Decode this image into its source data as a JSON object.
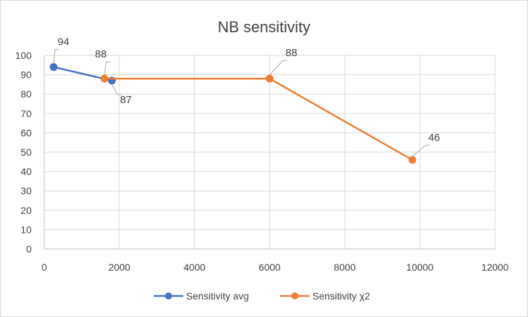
{
  "chart_data": {
    "type": "line",
    "title": "NB sensitivity",
    "xlabel": "",
    "ylabel": "",
    "xlim": [
      0,
      12000
    ],
    "ylim": [
      0,
      100
    ],
    "x_ticks": [
      0,
      2000,
      4000,
      6000,
      8000,
      10000,
      12000
    ],
    "y_ticks": [
      0,
      10,
      20,
      30,
      40,
      50,
      60,
      70,
      80,
      90,
      100
    ],
    "grid": true,
    "legend_position": "bottom",
    "series": [
      {
        "name": "Sensitivity avg",
        "color": "#4472C4",
        "points": [
          {
            "x": 250,
            "y": 94,
            "label": "94"
          },
          {
            "x": 1800,
            "y": 87,
            "label": "87"
          }
        ]
      },
      {
        "name": "Sensitivity χ2",
        "color": "#ED7D31",
        "points": [
          {
            "x": 1600,
            "y": 88,
            "label": "88"
          },
          {
            "x": 6000,
            "y": 88,
            "label": "88"
          },
          {
            "x": 9800,
            "y": 46,
            "label": "46"
          }
        ]
      }
    ]
  }
}
